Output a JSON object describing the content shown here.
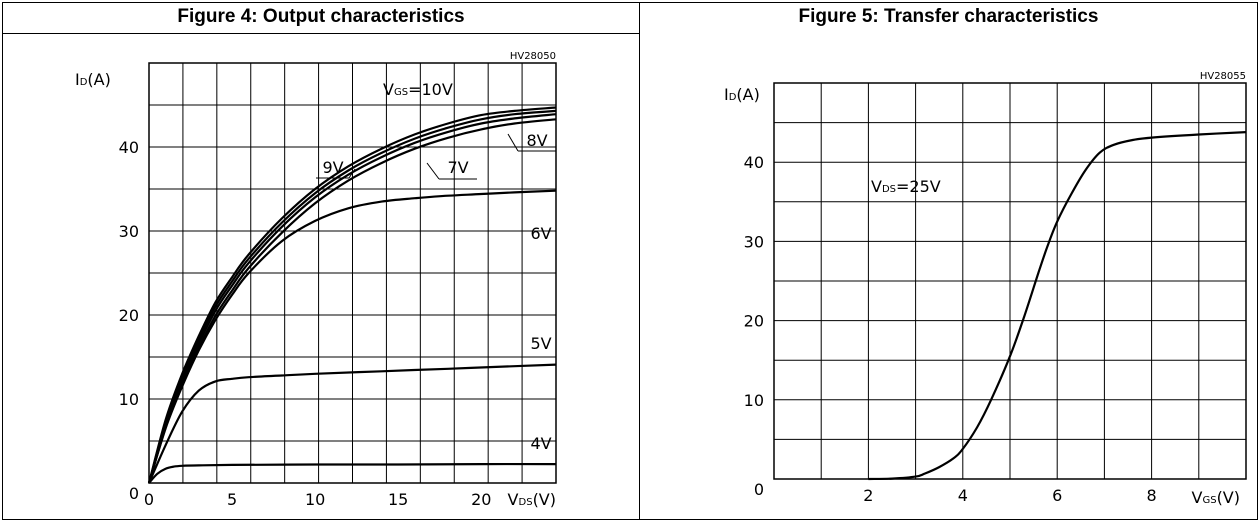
{
  "chart_data": [
    {
      "type": "line",
      "title": "Figure 4: Output characteristics",
      "code": "HV28050",
      "ylabel": "ID(A)",
      "xlabel": "VDS(V)",
      "xlim": [
        0,
        24.5
      ],
      "ylim": [
        0,
        50
      ],
      "x_ticks": [
        0,
        5,
        10,
        15,
        20
      ],
      "y_ticks": [
        10,
        20,
        30,
        40
      ],
      "origin_label": "0",
      "annotation": "VGS=10V",
      "grid": true,
      "series": [
        {
          "name": "10V",
          "x": [
            0,
            1,
            2,
            3,
            4,
            5,
            6,
            8,
            10,
            12,
            14,
            16,
            18,
            20,
            22,
            24.5
          ],
          "y": [
            0,
            7.5,
            13,
            17.5,
            21.5,
            24.5,
            27.2,
            31.5,
            35,
            37.7,
            39.8,
            41.5,
            42.8,
            43.8,
            44.3,
            44.7
          ]
        },
        {
          "name": "9V",
          "x": [
            0,
            1,
            2,
            3,
            4,
            5,
            6,
            8,
            10,
            12,
            14,
            16,
            18,
            20,
            22,
            24.5
          ],
          "y": [
            0,
            7.2,
            12.6,
            17.1,
            21,
            24,
            26.7,
            31,
            34.5,
            37.2,
            39.3,
            41,
            42.3,
            43.3,
            43.9,
            44.3
          ]
        },
        {
          "name": "8V",
          "x": [
            0,
            1,
            2,
            3,
            4,
            5,
            6,
            8,
            10,
            12,
            14,
            16,
            18,
            20,
            22,
            24.5
          ],
          "y": [
            0,
            6.9,
            12.2,
            16.6,
            20.5,
            23.5,
            26.2,
            30.5,
            34,
            36.7,
            38.8,
            40.5,
            41.8,
            42.8,
            43.4,
            43.9
          ]
        },
        {
          "name": "7V",
          "x": [
            0,
            1,
            2,
            3,
            4,
            5,
            6,
            8,
            10,
            12,
            14,
            16,
            18,
            20,
            22,
            24.5
          ],
          "y": [
            0,
            6.6,
            11.8,
            16.1,
            19.9,
            22.9,
            25.6,
            29.8,
            33.3,
            36,
            38.1,
            39.8,
            41.1,
            42.1,
            42.8,
            43.3
          ]
        },
        {
          "name": "6V",
          "x": [
            0,
            1,
            2,
            3,
            4,
            5,
            6,
            8,
            10,
            12,
            14,
            16,
            18,
            20,
            22,
            24.5
          ],
          "y": [
            0,
            6.5,
            11.5,
            15.8,
            19.4,
            22.4,
            25,
            28.8,
            31.2,
            32.7,
            33.5,
            33.9,
            34.2,
            34.4,
            34.6,
            34.8
          ]
        },
        {
          "name": "5V",
          "x": [
            0,
            1,
            2,
            3,
            4,
            5,
            6,
            8,
            10,
            14,
            18,
            22,
            24.5
          ],
          "y": [
            0,
            4.5,
            8.5,
            11,
            12.1,
            12.4,
            12.6,
            12.8,
            13,
            13.3,
            13.6,
            13.9,
            14.1
          ]
        },
        {
          "name": "4V",
          "x": [
            0,
            0.5,
            1,
            1.5,
            2,
            3,
            5,
            10,
            15,
            20,
            24.5
          ],
          "y": [
            0,
            1.1,
            1.7,
            1.95,
            2.05,
            2.1,
            2.15,
            2.2,
            2.2,
            2.25,
            2.25
          ]
        }
      ]
    },
    {
      "type": "line",
      "title": "Figure 5: Transfer characteristics",
      "code": "HV28055",
      "ylabel": "ID(A)",
      "xlabel": "VGS(V)",
      "xlim": [
        0,
        10
      ],
      "ylim": [
        0,
        50
      ],
      "x_ticks": [
        2,
        4,
        6,
        8
      ],
      "y_ticks": [
        10,
        20,
        30,
        40
      ],
      "origin_label": "0",
      "annotation": "VDS=25V",
      "grid": true,
      "series": [
        {
          "name": "VDS=25V",
          "x": [
            2.0,
            2.5,
            3.0,
            3.2,
            3.5,
            3.8,
            4.0,
            4.3,
            4.6,
            5.0,
            5.3,
            5.6,
            5.8,
            6.0,
            6.3,
            6.6,
            6.9,
            7.2,
            7.6,
            8.0,
            9.0,
            10.0
          ],
          "y": [
            0,
            0.05,
            0.3,
            0.7,
            1.5,
            2.6,
            3.8,
            6.5,
            10,
            15.5,
            20.5,
            26,
            29.5,
            32.5,
            36,
            39,
            41.2,
            42.2,
            42.8,
            43.1,
            43.5,
            43.8
          ]
        }
      ]
    }
  ]
}
